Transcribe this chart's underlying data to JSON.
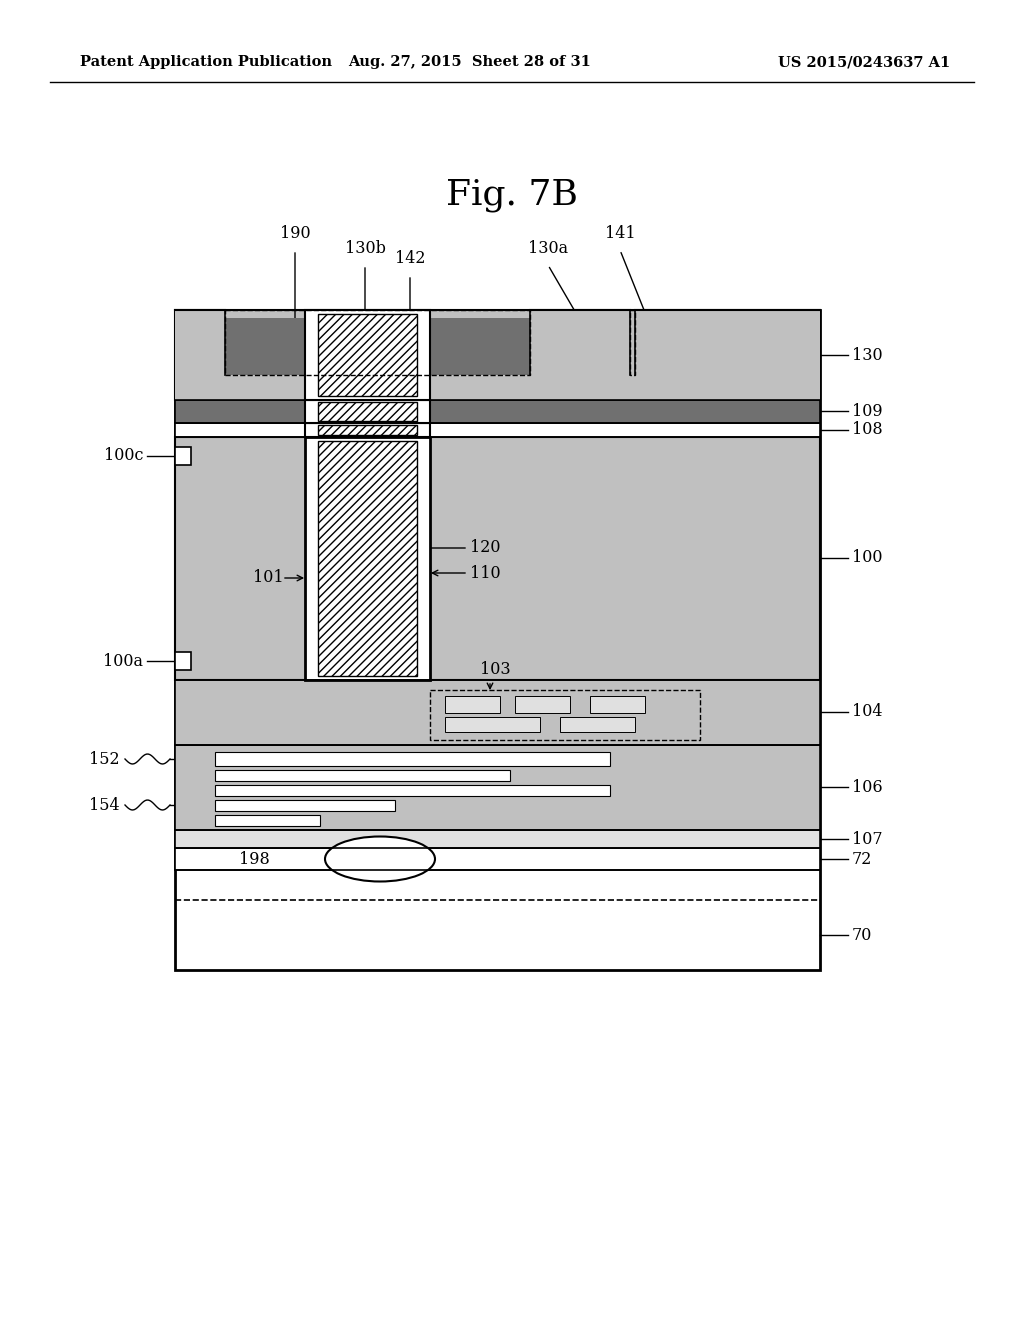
{
  "header_left": "Patent Application Publication",
  "header_mid": "Aug. 27, 2015  Sheet 28 of 31",
  "header_right": "US 2015/0243637 A1",
  "fig_title": "Fig. 7B",
  "bg_color": "#ffffff",
  "dot_color": "#c0c0c0",
  "dark_gray": "#707070",
  "light_gray": "#e0e0e0",
  "white": "#ffffff",
  "black": "#000000"
}
